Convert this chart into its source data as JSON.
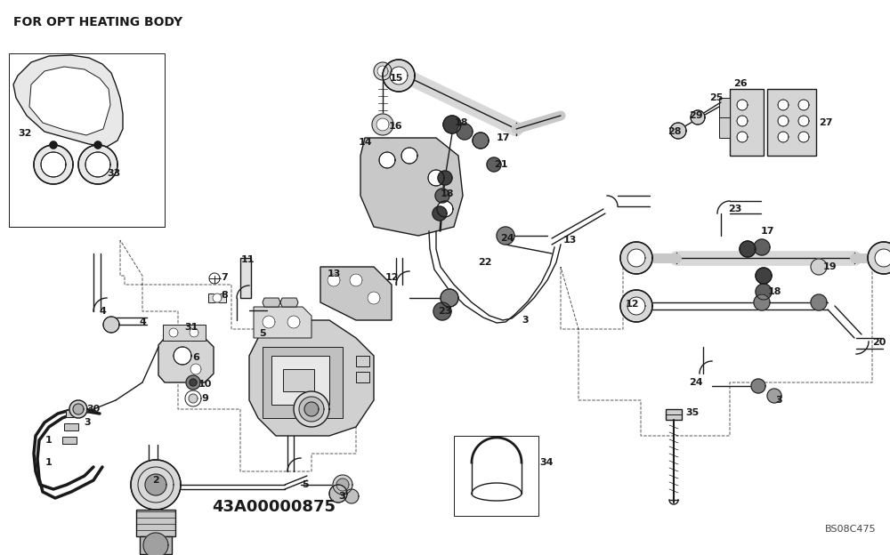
{
  "title": "FOR OPT HEATING BODY",
  "part_number": "43A00000875",
  "catalog_ref": "BS08C475",
  "bg_color": "#ffffff",
  "line_color": "#1a1a1a",
  "title_fontsize": 10,
  "label_fontsize": 8,
  "fig_width": 10.0,
  "fig_height": 6.24,
  "dpi": 100
}
